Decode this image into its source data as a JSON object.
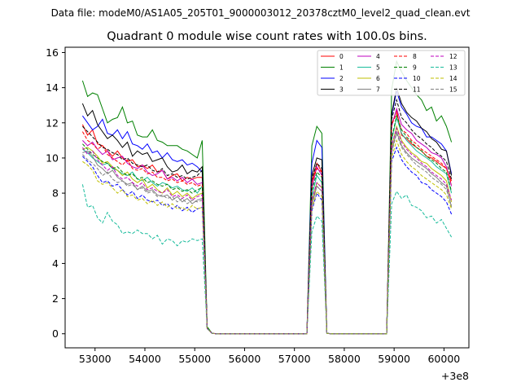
{
  "suptitle": "Data file: modeM0/AS1A05_205T01_9000003012_20378cztM0_level2_quad_clean.evt",
  "chart_data": {
    "type": "line",
    "title": "Quadrant 0 module wise count rates with 100.0s bins.",
    "xlabel": "",
    "ylabel": "",
    "offset_text": "+3e8",
    "xlim": [
      52400,
      60500
    ],
    "ylim": [
      -0.8,
      16.3
    ],
    "xticks": [
      53000,
      54000,
      55000,
      56000,
      57000,
      58000,
      59000,
      60000
    ],
    "yticks": [
      0,
      2,
      4,
      6,
      8,
      10,
      12,
      14,
      16
    ],
    "legend_position": "top-right",
    "x": [
      52750,
      52850,
      52950,
      53050,
      53150,
      53250,
      53350,
      53450,
      53550,
      53650,
      53750,
      53850,
      53950,
      54050,
      54150,
      54250,
      54350,
      54450,
      54550,
      54650,
      54750,
      54850,
      54950,
      55050,
      55150,
      55250,
      55350,
      55450,
      56250,
      57250,
      57350,
      57450,
      57550,
      57650,
      57750,
      57850,
      58850,
      58950,
      59050,
      59150,
      59250,
      59350,
      59450,
      59550,
      59650,
      59750,
      59850,
      59950,
      60050,
      60150
    ],
    "series": [
      {
        "name": "0",
        "color": "#ff0000",
        "dash": "solid",
        "values": [
          11.9,
          11.3,
          11.6,
          10.8,
          10.7,
          10.4,
          10.1,
          10.4,
          10.0,
          9.8,
          9.9,
          9.5,
          9.6,
          9.4,
          9.6,
          9.2,
          9.3,
          8.8,
          9.0,
          9.1,
          8.7,
          8.9,
          8.8,
          8.9,
          8.9,
          0.3,
          0.02,
          0.0,
          0.0,
          0.0,
          8.6,
          9.7,
          9.2,
          0.02,
          0.0,
          0.0,
          0.0,
          11.9,
          12.7,
          11.3,
          11.1,
          10.8,
          10.6,
          10.4,
          10.1,
          10.0,
          9.8,
          9.6,
          9.4,
          8.7
        ]
      },
      {
        "name": "1",
        "color": "#008000",
        "dash": "solid",
        "values": [
          14.4,
          13.5,
          13.7,
          13.6,
          12.8,
          12.0,
          12.2,
          12.3,
          12.9,
          12.0,
          12.1,
          11.3,
          11.2,
          11.2,
          11.6,
          11.0,
          10.9,
          10.7,
          10.7,
          10.7,
          10.5,
          10.4,
          10.2,
          10.0,
          11.0,
          0.4,
          0.02,
          0.0,
          0.0,
          0.0,
          10.7,
          11.8,
          11.4,
          0.02,
          0.0,
          0.0,
          0.0,
          13.9,
          15.5,
          14.9,
          14.4,
          14.0,
          13.6,
          13.3,
          12.7,
          12.9,
          12.1,
          12.4,
          11.8,
          10.9
        ]
      },
      {
        "name": "2",
        "color": "#0000ff",
        "dash": "solid",
        "values": [
          12.4,
          12.0,
          11.6,
          11.8,
          12.2,
          11.4,
          11.3,
          11.6,
          11.1,
          11.5,
          10.8,
          10.7,
          10.5,
          10.8,
          10.3,
          10.4,
          10.0,
          10.3,
          9.9,
          9.8,
          9.9,
          9.6,
          9.7,
          9.5,
          9.2,
          0.3,
          0.02,
          0.0,
          0.0,
          0.0,
          9.7,
          11.0,
          10.6,
          0.02,
          0.0,
          0.0,
          0.0,
          12.4,
          13.8,
          12.9,
          12.5,
          12.0,
          11.8,
          11.7,
          11.2,
          11.2,
          11.0,
          10.8,
          10.4,
          9.1
        ]
      },
      {
        "name": "3",
        "color": "#000000",
        "dash": "solid",
        "values": [
          13.1,
          12.4,
          12.7,
          11.9,
          11.5,
          11.1,
          11.3,
          11.0,
          10.6,
          10.9,
          10.1,
          10.4,
          10.2,
          10.3,
          9.8,
          9.9,
          10.0,
          9.5,
          9.2,
          9.3,
          9.6,
          9.1,
          9.3,
          9.2,
          9.5,
          0.3,
          0.02,
          0.0,
          0.0,
          0.0,
          9.0,
          10.0,
          9.9,
          0.02,
          0.0,
          0.0,
          0.0,
          12.5,
          14.0,
          13.1,
          12.6,
          12.3,
          12.1,
          11.7,
          11.5,
          11.1,
          10.9,
          10.5,
          10.4,
          9.0
        ]
      },
      {
        "name": "4",
        "color": "#bf00bf",
        "dash": "solid",
        "values": [
          11.0,
          10.7,
          10.9,
          10.5,
          10.2,
          10.4,
          9.9,
          10.0,
          10.1,
          9.7,
          9.5,
          9.4,
          9.6,
          9.2,
          9.0,
          9.1,
          9.3,
          8.8,
          8.9,
          8.7,
          8.9,
          8.6,
          8.8,
          8.5,
          8.6,
          0.3,
          0.02,
          0.0,
          0.0,
          0.0,
          8.3,
          9.5,
          9.0,
          0.02,
          0.0,
          0.0,
          0.0,
          11.8,
          12.8,
          11.9,
          11.6,
          11.4,
          11.0,
          10.8,
          10.6,
          10.3,
          10.2,
          10.0,
          9.5,
          8.4
        ]
      },
      {
        "name": "5",
        "color": "#1abc9c",
        "dash": "solid",
        "values": [
          10.5,
          10.3,
          10.0,
          9.8,
          9.6,
          9.7,
          9.4,
          9.3,
          9.1,
          9.0,
          9.2,
          8.8,
          8.7,
          8.9,
          8.6,
          8.4,
          8.6,
          8.5,
          8.3,
          8.4,
          8.2,
          8.1,
          8.3,
          8.0,
          8.4,
          0.3,
          0.02,
          0.0,
          0.0,
          0.0,
          7.8,
          9.0,
          8.6,
          0.02,
          0.0,
          0.0,
          0.0,
          11.0,
          12.3,
          11.4,
          11.0,
          10.7,
          10.4,
          10.2,
          10.0,
          9.8,
          9.5,
          9.3,
          9.1,
          8.0
        ]
      },
      {
        "name": "6",
        "color": "#bfbf00",
        "dash": "solid",
        "values": [
          10.5,
          10.6,
          10.4,
          10.1,
          9.7,
          9.8,
          9.5,
          9.3,
          9.0,
          9.2,
          8.8,
          8.6,
          8.8,
          8.3,
          8.5,
          8.2,
          8.0,
          8.3,
          7.9,
          8.1,
          7.8,
          8.0,
          7.7,
          7.9,
          8.0,
          0.3,
          0.02,
          0.0,
          0.0,
          0.0,
          7.5,
          8.6,
          8.3,
          0.02,
          0.0,
          0.0,
          0.0,
          10.6,
          11.8,
          11.0,
          10.6,
          10.3,
          10.1,
          9.8,
          9.7,
          9.4,
          9.2,
          9.0,
          8.7,
          7.5
        ]
      },
      {
        "name": "7",
        "color": "#808080",
        "dash": "solid",
        "values": [
          10.3,
          10.4,
          10.1,
          9.6,
          9.4,
          9.1,
          9.3,
          8.9,
          8.7,
          8.5,
          8.6,
          8.2,
          8.4,
          8.1,
          8.2,
          7.9,
          7.8,
          7.9,
          7.6,
          7.8,
          7.5,
          7.7,
          7.4,
          7.6,
          7.7,
          0.3,
          0.02,
          0.0,
          0.0,
          0.0,
          7.3,
          8.4,
          8.1,
          0.02,
          0.0,
          0.0,
          0.0,
          10.4,
          11.5,
          10.7,
          10.3,
          10.0,
          9.8,
          9.6,
          9.4,
          9.1,
          8.9,
          8.6,
          8.4,
          7.2
        ]
      },
      {
        "name": "8",
        "color": "#ff0000",
        "dash": "dashed",
        "values": [
          11.5,
          11.0,
          10.8,
          10.5,
          10.7,
          10.2,
          10.0,
          9.8,
          9.6,
          9.9,
          9.4,
          9.3,
          9.4,
          9.1,
          9.2,
          8.9,
          8.9,
          8.7,
          8.8,
          8.6,
          8.7,
          8.5,
          8.6,
          8.4,
          8.5,
          0.3,
          0.02,
          0.0,
          0.0,
          0.0,
          8.6,
          9.4,
          9.2,
          0.02,
          0.0,
          0.0,
          0.0,
          11.9,
          12.5,
          11.6,
          11.4,
          11.0,
          10.8,
          10.5,
          10.3,
          10.1,
          9.9,
          9.7,
          9.4,
          8.5
        ]
      },
      {
        "name": "9",
        "color": "#008000",
        "dash": "dashed",
        "values": [
          10.8,
          10.5,
          10.2,
          10.0,
          9.8,
          9.7,
          9.4,
          9.5,
          9.2,
          9.0,
          9.1,
          8.8,
          8.9,
          8.6,
          8.7,
          8.5,
          8.4,
          8.5,
          8.2,
          8.3,
          8.1,
          8.2,
          8.0,
          8.2,
          8.3,
          0.3,
          0.02,
          0.0,
          0.0,
          0.0,
          8.1,
          9.2,
          8.9,
          0.02,
          0.0,
          0.0,
          0.0,
          11.1,
          12.4,
          11.6,
          11.2,
          10.9,
          10.6,
          10.4,
          10.1,
          9.9,
          9.7,
          9.4,
          9.2,
          8.1
        ]
      },
      {
        "name": "10",
        "color": "#0000ff",
        "dash": "dashed",
        "values": [
          10.1,
          9.8,
          9.5,
          9.0,
          8.6,
          8.7,
          8.4,
          8.5,
          8.2,
          7.9,
          8.1,
          7.7,
          7.9,
          7.6,
          7.5,
          7.6,
          7.3,
          7.4,
          7.1,
          7.3,
          7.0,
          7.2,
          6.9,
          7.1,
          7.2,
          0.3,
          0.02,
          0.0,
          0.0,
          0.0,
          7.0,
          8.0,
          7.6,
          0.02,
          0.0,
          0.0,
          0.0,
          9.8,
          10.6,
          9.9,
          9.5,
          9.2,
          9.0,
          8.6,
          8.5,
          8.2,
          8.0,
          7.8,
          7.5,
          6.8
        ]
      },
      {
        "name": "11",
        "color": "#000000",
        "dash": "dashed",
        "values": [
          11.8,
          11.5,
          11.2,
          10.9,
          10.6,
          10.5,
          10.3,
          10.2,
          9.9,
          10.0,
          9.7,
          9.6,
          9.5,
          9.6,
          9.3,
          9.2,
          9.4,
          9.0,
          9.1,
          8.9,
          9.0,
          8.8,
          8.9,
          9.0,
          9.3,
          0.3,
          0.02,
          0.0,
          0.0,
          0.0,
          8.8,
          9.7,
          9.4,
          0.02,
          0.0,
          0.0,
          0.0,
          12.2,
          13.3,
          12.3,
          12.0,
          11.6,
          11.3,
          11.1,
          10.8,
          10.6,
          10.3,
          10.1,
          9.8,
          8.8
        ]
      },
      {
        "name": "12",
        "color": "#bf00bf",
        "dash": "dashed",
        "values": [
          10.6,
          10.2,
          10.4,
          9.9,
          9.6,
          9.3,
          9.5,
          9.0,
          8.8,
          8.9,
          8.6,
          8.4,
          8.6,
          8.2,
          8.3,
          8.1,
          8.0,
          8.2,
          7.8,
          7.9,
          7.7,
          7.9,
          7.6,
          7.8,
          7.9,
          0.3,
          0.02,
          0.0,
          0.0,
          0.0,
          7.6,
          8.6,
          8.3,
          0.02,
          0.0,
          0.0,
          0.0,
          10.7,
          11.7,
          10.9,
          10.5,
          10.2,
          10.0,
          9.7,
          9.5,
          9.2,
          9.0,
          8.8,
          8.5,
          7.6
        ]
      },
      {
        "name": "13",
        "color": "#1abc9c",
        "dash": "dashed",
        "values": [
          8.5,
          7.2,
          7.3,
          6.6,
          6.3,
          6.9,
          6.4,
          6.2,
          5.7,
          5.8,
          5.7,
          5.9,
          5.7,
          5.7,
          5.4,
          5.6,
          5.1,
          5.4,
          5.3,
          5.0,
          5.3,
          5.2,
          5.4,
          5.3,
          5.4,
          0.3,
          0.02,
          0.0,
          0.0,
          0.0,
          5.8,
          6.7,
          6.4,
          0.02,
          0.0,
          0.0,
          0.0,
          7.4,
          8.1,
          7.7,
          7.9,
          7.3,
          7.2,
          7.0,
          6.6,
          6.7,
          6.3,
          6.5,
          6.0,
          5.5
        ]
      },
      {
        "name": "14",
        "color": "#bfbf00",
        "dash": "dashed",
        "values": [
          9.8,
          9.6,
          9.3,
          8.7,
          8.5,
          8.6,
          8.3,
          8.0,
          8.2,
          7.8,
          7.9,
          7.6,
          7.7,
          7.4,
          7.6,
          7.3,
          7.5,
          7.2,
          7.4,
          7.1,
          7.2,
          7.0,
          7.3,
          7.1,
          7.2,
          0.3,
          0.02,
          0.0,
          0.0,
          0.0,
          7.1,
          8.1,
          7.8,
          0.02,
          0.0,
          0.0,
          0.0,
          10.0,
          11.0,
          10.2,
          9.8,
          9.5,
          9.3,
          9.0,
          8.8,
          8.6,
          8.4,
          8.2,
          7.9,
          7.1
        ]
      },
      {
        "name": "15",
        "color": "#808080",
        "dash": "dashed",
        "values": [
          10.2,
          9.9,
          9.7,
          9.4,
          9.0,
          9.2,
          8.8,
          8.6,
          8.7,
          8.4,
          8.5,
          8.2,
          8.3,
          8.0,
          8.1,
          7.8,
          7.9,
          7.7,
          7.8,
          7.5,
          7.7,
          7.4,
          7.6,
          7.5,
          7.6,
          0.3,
          0.02,
          0.0,
          0.0,
          0.0,
          7.4,
          8.4,
          8.1,
          0.02,
          0.0,
          0.0,
          0.0,
          10.3,
          11.4,
          10.6,
          10.2,
          9.9,
          9.6,
          9.4,
          9.2,
          8.9,
          8.7,
          8.5,
          8.2,
          7.3
        ]
      }
    ]
  }
}
